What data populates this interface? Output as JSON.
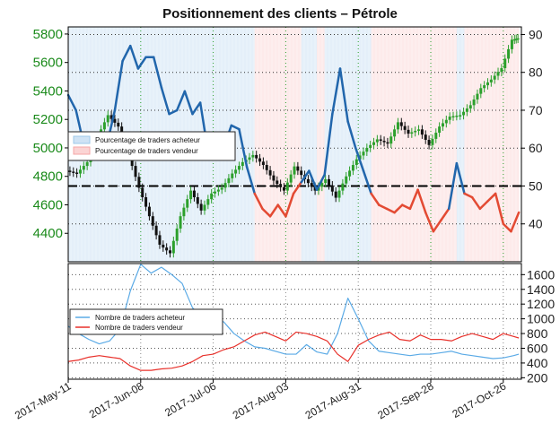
{
  "chart_data": {
    "title": "Positionnement des clients – Pétrole",
    "x_tick_labels": [
      "2017-May-11",
      "2017-Jun-08",
      "2017-Jul-06",
      "2017-Aug-03",
      "2017-Aug-31",
      "2017-Sep-28",
      "2017-Oct-26"
    ],
    "panels": [
      {
        "type": "line",
        "name": "price-and-percentage",
        "left_axis": {
          "ylim": [
            4200,
            5850
          ],
          "ticks": [
            "4400",
            "4600",
            "4800",
            "5000",
            "5200",
            "5400",
            "5600",
            "5800"
          ]
        },
        "right_axis": {
          "ylim": [
            30,
            92
          ],
          "ticks": [
            "40",
            "50",
            "60",
            "70",
            "80",
            "90"
          ]
        },
        "reference_line_right_value": 50,
        "legend": {
          "placement": "left",
          "entries": [
            {
              "label": "Pourcentage de traders acheteur",
              "color": "#9ec8ea"
            },
            {
              "label": "Pourcentage de traders vendeur",
              "color": "#f4a6a6"
            }
          ]
        },
        "percent_long_series": {
          "x_days": [
            0,
            3,
            6,
            9,
            12,
            15,
            18,
            21,
            24,
            27,
            30,
            33,
            36,
            39,
            42,
            45,
            48,
            51,
            54,
            57,
            60,
            63,
            66,
            69,
            72,
            75,
            78,
            81,
            84,
            87,
            90,
            93,
            96,
            99,
            102,
            105,
            108,
            111,
            114,
            117,
            120,
            123,
            126,
            129,
            132,
            135,
            138,
            141,
            144,
            147,
            150,
            153,
            156,
            159,
            162,
            165,
            168,
            171,
            174
          ],
          "values": [
            74,
            70,
            61,
            62,
            60,
            61,
            70,
            83,
            87,
            81,
            84,
            84,
            76,
            69,
            70,
            75,
            69,
            72,
            59,
            63,
            60,
            66,
            65,
            55,
            48,
            44,
            42,
            45,
            42,
            48,
            51,
            54,
            49,
            53,
            69,
            81,
            67,
            60,
            54,
            48,
            45,
            44,
            43,
            45,
            44,
            49,
            43,
            38,
            41,
            44,
            56,
            48,
            47,
            44,
            46,
            48,
            40,
            38,
            43
          ],
          "color_above_50": "#2166ac",
          "color_below_50": "#e34a33"
        },
        "price_candles": {
          "x_days": [
            0,
            4,
            8,
            12,
            16,
            20,
            24,
            28,
            32,
            36,
            40,
            44,
            48,
            52,
            56,
            60,
            64,
            68,
            72,
            76,
            80,
            84,
            88,
            92,
            96,
            100,
            104,
            108,
            112,
            116,
            120,
            124,
            128,
            132,
            136,
            140,
            144,
            148,
            152,
            156,
            160,
            164,
            168,
            172,
            174
          ],
          "close": [
            4840,
            4820,
            4900,
            5080,
            5230,
            5150,
            4950,
            4720,
            4520,
            4320,
            4260,
            4520,
            4700,
            4560,
            4680,
            4720,
            4820,
            4900,
            4950,
            4880,
            4770,
            4700,
            4870,
            4780,
            4700,
            4780,
            4650,
            4800,
            4920,
            5000,
            5060,
            5030,
            5180,
            5100,
            5130,
            5020,
            5150,
            5220,
            5230,
            5300,
            5420,
            5480,
            5560,
            5760,
            5770
          ],
          "up_color": "#2ca02c",
          "down_color": "#111111"
        }
      },
      {
        "type": "line",
        "name": "trader-counts",
        "right_axis": {
          "ylim": [
            180,
            1750
          ],
          "ticks": [
            "200",
            "400",
            "600",
            "800",
            "1000",
            "1200",
            "1400",
            "1600"
          ]
        },
        "legend": {
          "placement": "left",
          "entries": [
            {
              "label": "Nombre de traders acheteur",
              "color": "#5aaae6"
            },
            {
              "label": "Nombre de traders vendeur",
              "color": "#e8302a"
            }
          ]
        },
        "series": [
          {
            "name": "Nombre de traders acheteur",
            "color": "#5aaae6",
            "x_days": [
              0,
              4,
              8,
              12,
              16,
              20,
              24,
              28,
              32,
              36,
              40,
              44,
              48,
              52,
              56,
              60,
              64,
              68,
              72,
              76,
              80,
              84,
              88,
              92,
              96,
              100,
              104,
              108,
              112,
              116,
              120,
              124,
              128,
              132,
              136,
              140,
              144,
              148,
              152,
              156,
              160,
              164,
              168,
              172,
              174
            ],
            "values": [
              900,
              800,
              720,
              660,
              700,
              860,
              1380,
              1740,
              1620,
              1700,
              1600,
              1480,
              1150,
              1000,
              1000,
              960,
              800,
              700,
              620,
              600,
              560,
              520,
              520,
              650,
              550,
              520,
              800,
              1280,
              1000,
              700,
              560,
              540,
              520,
              500,
              520,
              520,
              540,
              560,
              520,
              500,
              480,
              460,
              470,
              500,
              520
            ]
          },
          {
            "name": "Nombre de traders vendeur",
            "color": "#e8302a",
            "x_days": [
              0,
              4,
              8,
              12,
              16,
              20,
              24,
              28,
              32,
              36,
              40,
              44,
              48,
              52,
              56,
              60,
              64,
              68,
              72,
              76,
              80,
              84,
              88,
              92,
              96,
              100,
              104,
              108,
              112,
              116,
              120,
              124,
              128,
              132,
              136,
              140,
              144,
              148,
              152,
              156,
              160,
              164,
              168,
              172,
              174
            ],
            "values": [
              420,
              440,
              480,
              500,
              480,
              460,
              360,
              300,
              300,
              320,
              330,
              360,
              420,
              500,
              520,
              580,
              620,
              700,
              780,
              820,
              760,
              700,
              820,
              800,
              760,
              700,
              520,
              420,
              640,
              720,
              780,
              820,
              720,
              700,
              780,
              720,
              720,
              700,
              760,
              800,
              760,
              720,
              800,
              760,
              740
            ]
          }
        ]
      }
    ]
  }
}
